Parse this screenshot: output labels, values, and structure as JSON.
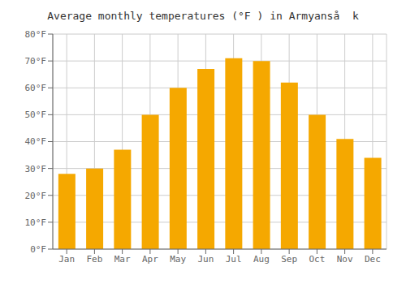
{
  "chart_data": {
    "type": "bar",
    "title": "Average monthly temperatures (°F ) in Armyanså  k",
    "categories": [
      "Jan",
      "Feb",
      "Mar",
      "Apr",
      "May",
      "Jun",
      "Jul",
      "Aug",
      "Sep",
      "Oct",
      "Nov",
      "Dec"
    ],
    "values": [
      28,
      30,
      37,
      50,
      60,
      67,
      71,
      70,
      62,
      50,
      41,
      34
    ],
    "color": "#F5A800",
    "ylim": [
      0,
      80
    ],
    "yticks": [
      {
        "value": 0,
        "label": "0°F"
      },
      {
        "value": 10,
        "label": "10°F"
      },
      {
        "value": 20,
        "label": "20°F"
      },
      {
        "value": 30,
        "label": "30°F"
      },
      {
        "value": 40,
        "label": "40°F"
      },
      {
        "value": 50,
        "label": "50°F"
      },
      {
        "value": 60,
        "label": "60°F"
      },
      {
        "value": 70,
        "label": "70°F"
      },
      {
        "value": 80,
        "label": "80°F"
      }
    ],
    "grid": true
  }
}
